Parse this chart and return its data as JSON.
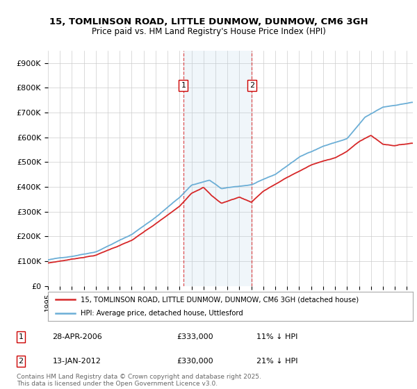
{
  "title_line1": "15, TOMLINSON ROAD, LITTLE DUNMOW, DUNMOW, CM6 3GH",
  "title_line2": "Price paid vs. HM Land Registry's House Price Index (HPI)",
  "ylabel_ticks": [
    "£0",
    "£100K",
    "£200K",
    "£300K",
    "£400K",
    "£500K",
    "£600K",
    "£700K",
    "£800K",
    "£900K"
  ],
  "ytick_values": [
    0,
    100000,
    200000,
    300000,
    400000,
    500000,
    600000,
    700000,
    800000,
    900000
  ],
  "ylim": [
    0,
    950000
  ],
  "xlim_start": 1995.0,
  "xlim_end": 2025.5,
  "hpi_color": "#6baed6",
  "price_color": "#d62728",
  "marker1_date": 2006.32,
  "marker1_label": "1",
  "marker2_date": 2012.04,
  "marker2_label": "2",
  "legend_line1": "15, TOMLINSON ROAD, LITTLE DUNMOW, DUNMOW, CM6 3GH (detached house)",
  "legend_line2": "HPI: Average price, detached house, Uttlesford",
  "footer": "Contains HM Land Registry data © Crown copyright and database right 2025.\nThis data is licensed under the Open Government Licence v3.0.",
  "xticks": [
    1995,
    1996,
    1997,
    1998,
    1999,
    2000,
    2001,
    2002,
    2003,
    2004,
    2005,
    2006,
    2007,
    2008,
    2009,
    2010,
    2011,
    2012,
    2013,
    2014,
    2015,
    2016,
    2017,
    2018,
    2019,
    2020,
    2021,
    2022,
    2023,
    2024,
    2025
  ],
  "background_color": "#ffffff",
  "grid_color": "#cccccc",
  "shaded_region": [
    2006.32,
    2012.04
  ],
  "hpi_xknots": [
    1995,
    1997,
    1999,
    2002,
    2004,
    2006,
    2007,
    2008.5,
    2009.5,
    2012,
    2014,
    2016,
    2018,
    2020,
    2021.5,
    2023,
    2025.4
  ],
  "hpi_yknots": [
    105000,
    120000,
    140000,
    210000,
    280000,
    360000,
    410000,
    430000,
    395000,
    410000,
    450000,
    520000,
    565000,
    595000,
    680000,
    720000,
    740000
  ],
  "price_xknots": [
    1995,
    1997,
    1999,
    2002,
    2004,
    2006,
    2007,
    2008,
    2008.7,
    2009.5,
    2011,
    2012,
    2013,
    2015,
    2017,
    2019,
    2020,
    2021,
    2022,
    2023,
    2024,
    2025.4
  ],
  "price_yknots": [
    92000,
    108000,
    125000,
    185000,
    250000,
    320000,
    375000,
    400000,
    365000,
    335000,
    360000,
    340000,
    385000,
    440000,
    490000,
    520000,
    545000,
    585000,
    610000,
    575000,
    570000,
    580000
  ]
}
